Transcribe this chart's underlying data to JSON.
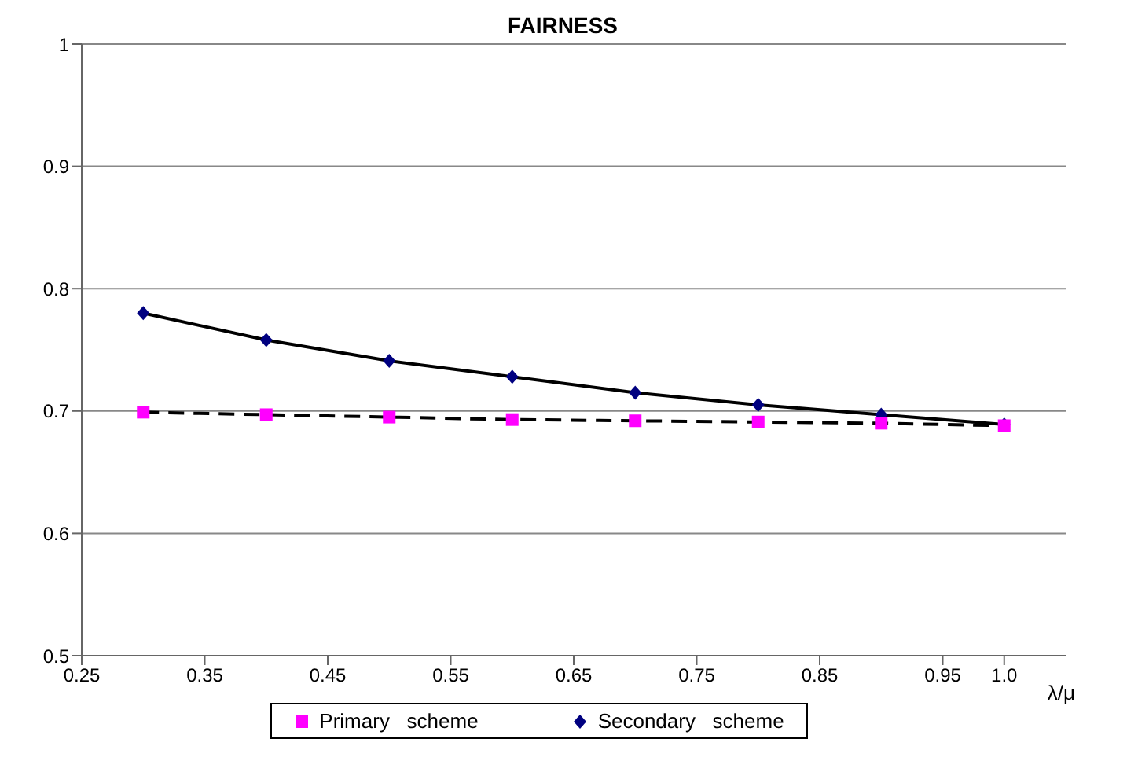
{
  "chart_data": {
    "type": "line",
    "title": "FAIRNESS",
    "xlabel": "λ/μ",
    "x": [
      0.3,
      0.4,
      0.5,
      0.6,
      0.7,
      0.8,
      0.9,
      1.0
    ],
    "series": [
      {
        "name": "Primary   scheme",
        "color": "#ff00ff",
        "marker": "square",
        "line_style": "dashed",
        "values": [
          0.699,
          0.697,
          0.695,
          0.693,
          0.692,
          0.691,
          0.69,
          0.688
        ]
      },
      {
        "name": "Secondary   scheme",
        "color": "#000080",
        "marker": "diamond",
        "line_style": "solid",
        "values": [
          0.78,
          0.758,
          0.741,
          0.728,
          0.715,
          0.705,
          0.697,
          0.689
        ]
      }
    ],
    "xlim": [
      0.25,
      1.05
    ],
    "xticks": [
      0.25,
      0.35,
      0.45,
      0.55,
      0.65,
      0.75,
      0.85,
      0.95,
      {
        "value": 1.0,
        "label": "1.0"
      }
    ],
    "ylim": [
      0.5,
      1
    ],
    "yticks": [
      0.5,
      0.6,
      0.7,
      0.8,
      0.9,
      1
    ],
    "grid": "y",
    "legend": "bottom"
  }
}
